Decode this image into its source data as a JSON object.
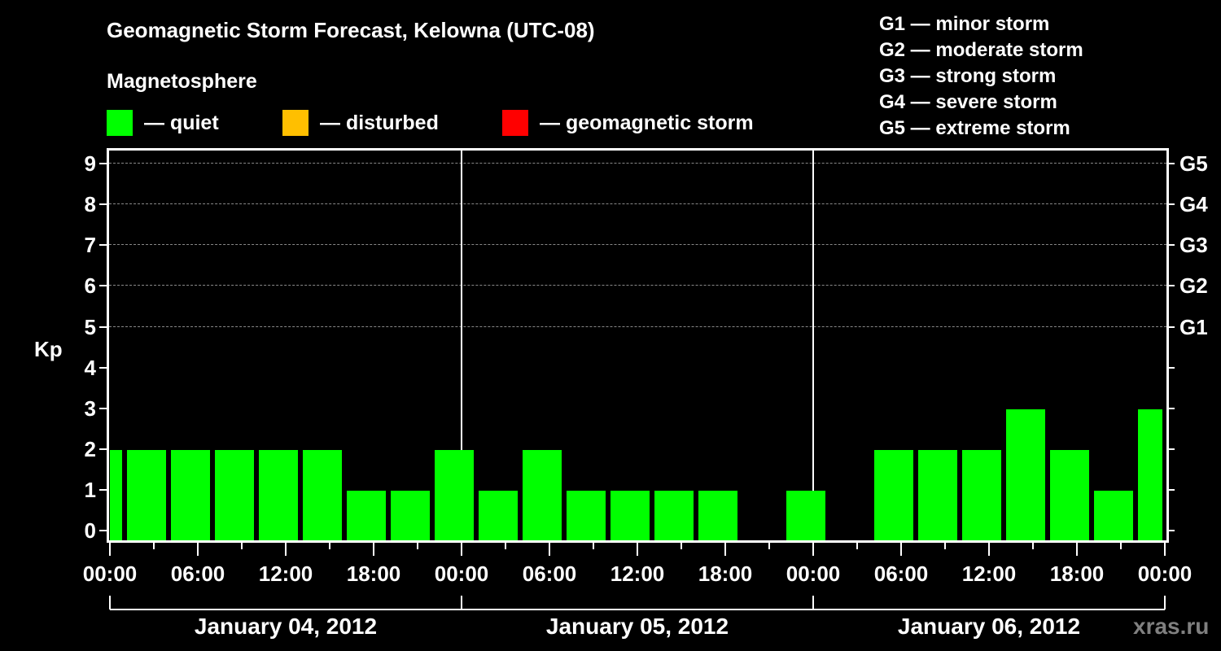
{
  "header": {
    "title": "Geomagnetic Storm Forecast, Kelowna (UTC-08)",
    "subtitle": "Magnetosphere"
  },
  "legend": {
    "items": [
      {
        "label": "— quiet",
        "color": "#00ff00"
      },
      {
        "label": "— disturbed",
        "color": "#ffbf00"
      },
      {
        "label": "— geomagnetic storm",
        "color": "#ff0000"
      }
    ]
  },
  "g_scale_legend": [
    "G1 — minor storm",
    "G2 — moderate storm",
    "G3 — strong storm",
    "G4 — severe storm",
    "G5 — extreme storm"
  ],
  "axes": {
    "y_title": "Kp",
    "y_ticks": [
      "0",
      "1",
      "2",
      "3",
      "4",
      "5",
      "6",
      "7",
      "8",
      "9"
    ],
    "g_ticks": [
      {
        "label": "G1",
        "kp": 5
      },
      {
        "label": "G2",
        "kp": 6
      },
      {
        "label": "G3",
        "kp": 7
      },
      {
        "label": "G4",
        "kp": 8
      },
      {
        "label": "G5",
        "kp": 9
      }
    ],
    "x_ticks": [
      "00:00",
      "06:00",
      "12:00",
      "18:00",
      "00:00",
      "06:00",
      "12:00",
      "18:00",
      "00:00",
      "06:00",
      "12:00",
      "18:00",
      "00:00"
    ],
    "days": [
      "January 04, 2012",
      "January 05, 2012",
      "January 06, 2012"
    ]
  },
  "watermark": "xras.ru",
  "chart_data": {
    "type": "bar",
    "title": "Geomagnetic Storm Forecast, Kelowna (UTC-08)",
    "subtitle": "Magnetosphere",
    "xlabel": "",
    "ylabel": "Kp",
    "ylim": [
      0,
      9
    ],
    "secondary_y_labels": {
      "5": "G1",
      "6": "G2",
      "7": "G3",
      "8": "G4",
      "9": "G5"
    },
    "grid": "dashed horizontal lines at Kp 5–9",
    "legend": [
      {
        "label": "quiet",
        "color": "#00ff00"
      },
      {
        "label": "disturbed",
        "color": "#ffbf00"
      },
      {
        "label": "geomagnetic storm",
        "color": "#ff0000"
      }
    ],
    "x_ticks": [
      "00:00",
      "06:00",
      "12:00",
      "18:00",
      "00:00",
      "06:00",
      "12:00",
      "18:00",
      "00:00",
      "06:00",
      "12:00",
      "18:00",
      "00:00"
    ],
    "day_groups": [
      "January 04, 2012",
      "January 05, 2012",
      "January 06, 2012"
    ],
    "categories": [
      "Jan04 ~00:00",
      "Jan04 01:30",
      "Jan04 04:30",
      "Jan04 07:30",
      "Jan04 10:30",
      "Jan04 13:30",
      "Jan04 16:30",
      "Jan04 19:30",
      "Jan04 22:30",
      "Jan05 01:30",
      "Jan05 04:30",
      "Jan05 07:30",
      "Jan05 10:30",
      "Jan05 13:30",
      "Jan05 16:30",
      "Jan05 19:30",
      "Jan05 22:30",
      "Jan06 01:30",
      "Jan06 04:30",
      "Jan06 07:30",
      "Jan06 10:30",
      "Jan06 13:30",
      "Jan06 16:30",
      "Jan06 19:30",
      "Jan06 22:30"
    ],
    "values": [
      2,
      2,
      2,
      2,
      2,
      2,
      1,
      1,
      2,
      1,
      2,
      1,
      1,
      1,
      1,
      0,
      1,
      0,
      2,
      2,
      2,
      3,
      2,
      1,
      3
    ],
    "bar_color": "#00ff00"
  }
}
